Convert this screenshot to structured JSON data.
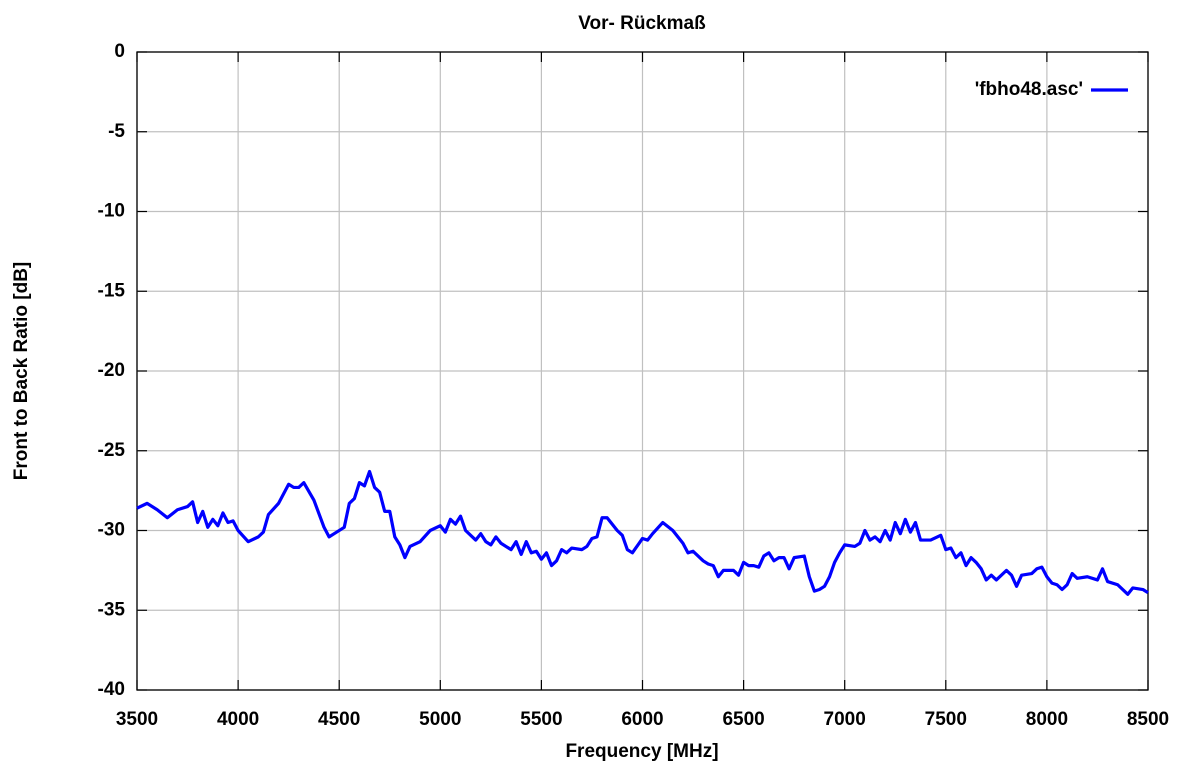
{
  "chart_data": {
    "type": "line",
    "title": "Vor- Rückmaß",
    "x_label": "Frequency [MHz]",
    "y_label": "Front to Back Ratio [dB]",
    "xlim": [
      3500,
      8500
    ],
    "ylim": [
      -40,
      0
    ],
    "xticks": [
      3500,
      4000,
      4500,
      5000,
      5500,
      6000,
      6500,
      7000,
      7500,
      8000,
      8500
    ],
    "yticks": [
      -40,
      -35,
      -30,
      -25,
      -20,
      -15,
      -10,
      -5,
      0
    ],
    "grid": true,
    "legend": "upper right",
    "x": [
      3500,
      3550,
      3600,
      3650,
      3700,
      3750,
      3775,
      3800,
      3825,
      3850,
      3875,
      3900,
      3925,
      3950,
      3975,
      4000,
      4050,
      4100,
      4125,
      4150,
      4200,
      4250,
      4275,
      4300,
      4325,
      4375,
      4425,
      4450,
      4475,
      4525,
      4550,
      4575,
      4600,
      4625,
      4650,
      4675,
      4700,
      4725,
      4750,
      4775,
      4800,
      4825,
      4850,
      4900,
      4950,
      5000,
      5025,
      5050,
      5075,
      5100,
      5125,
      5175,
      5200,
      5225,
      5250,
      5275,
      5300,
      5350,
      5375,
      5400,
      5425,
      5450,
      5475,
      5500,
      5525,
      5550,
      5575,
      5600,
      5625,
      5650,
      5700,
      5725,
      5750,
      5775,
      5800,
      5825,
      5875,
      5900,
      5925,
      5950,
      6000,
      6025,
      6050,
      6100,
      6150,
      6200,
      6225,
      6250,
      6300,
      6325,
      6350,
      6375,
      6400,
      6450,
      6475,
      6500,
      6525,
      6550,
      6575,
      6600,
      6625,
      6650,
      6675,
      6700,
      6725,
      6750,
      6800,
      6825,
      6850,
      6875,
      6900,
      6925,
      6950,
      6975,
      7000,
      7050,
      7075,
      7100,
      7125,
      7150,
      7175,
      7200,
      7225,
      7250,
      7275,
      7300,
      7325,
      7350,
      7375,
      7425,
      7475,
      7500,
      7525,
      7550,
      7575,
      7600,
      7625,
      7650,
      7675,
      7700,
      7725,
      7750,
      7800,
      7825,
      7850,
      7875,
      7925,
      7950,
      7975,
      8000,
      8025,
      8050,
      8075,
      8100,
      8125,
      8150,
      8200,
      8250,
      8275,
      8300,
      8350,
      8400,
      8425,
      8475,
      8500
    ],
    "series": [
      {
        "name": "'fbho48.asc'",
        "color": "#0000ff",
        "values": [
          -28.6,
          -28.3,
          -28.7,
          -29.2,
          -28.7,
          -28.5,
          -28.2,
          -29.5,
          -28.8,
          -29.8,
          -29.3,
          -29.7,
          -28.9,
          -29.5,
          -29.4,
          -30.0,
          -30.7,
          -30.4,
          -30.1,
          -29.0,
          -28.3,
          -27.1,
          -27.3,
          -27.3,
          -27.0,
          -28.1,
          -29.8,
          -30.4,
          -30.2,
          -29.8,
          -28.3,
          -28.0,
          -27.0,
          -27.2,
          -26.3,
          -27.3,
          -27.6,
          -28.8,
          -28.8,
          -30.4,
          -30.9,
          -31.7,
          -31.0,
          -30.7,
          -30.0,
          -29.7,
          -30.1,
          -29.3,
          -29.6,
          -29.1,
          -30.0,
          -30.6,
          -30.2,
          -30.7,
          -30.9,
          -30.4,
          -30.8,
          -31.2,
          -30.7,
          -31.5,
          -30.7,
          -31.4,
          -31.3,
          -31.8,
          -31.4,
          -32.2,
          -31.9,
          -31.2,
          -31.4,
          -31.1,
          -31.2,
          -31.0,
          -30.5,
          -30.4,
          -29.2,
          -29.2,
          -30.0,
          -30.3,
          -31.2,
          -31.4,
          -30.5,
          -30.6,
          -30.2,
          -29.5,
          -30.0,
          -30.8,
          -31.4,
          -31.3,
          -31.9,
          -32.1,
          -32.2,
          -32.9,
          -32.5,
          -32.5,
          -32.8,
          -32.0,
          -32.2,
          -32.2,
          -32.3,
          -31.6,
          -31.4,
          -31.9,
          -31.7,
          -31.7,
          -32.4,
          -31.7,
          -31.6,
          -32.9,
          -33.8,
          -33.7,
          -33.5,
          -32.9,
          -32.0,
          -31.4,
          -30.9,
          -31.0,
          -30.8,
          -30.0,
          -30.6,
          -30.4,
          -30.7,
          -30.0,
          -30.6,
          -29.5,
          -30.2,
          -29.3,
          -30.1,
          -29.5,
          -30.6,
          -30.6,
          -30.3,
          -31.2,
          -31.1,
          -31.7,
          -31.4,
          -32.2,
          -31.7,
          -32.0,
          -32.4,
          -33.1,
          -32.8,
          -33.1,
          -32.5,
          -32.8,
          -33.5,
          -32.8,
          -32.7,
          -32.4,
          -32.3,
          -32.9,
          -33.3,
          -33.4,
          -33.7,
          -33.4,
          -32.7,
          -33.0,
          -32.9,
          -33.1,
          -32.4,
          -33.2,
          -33.4,
          -34.0,
          -33.6,
          -33.7,
          -33.9
        ]
      }
    ]
  }
}
